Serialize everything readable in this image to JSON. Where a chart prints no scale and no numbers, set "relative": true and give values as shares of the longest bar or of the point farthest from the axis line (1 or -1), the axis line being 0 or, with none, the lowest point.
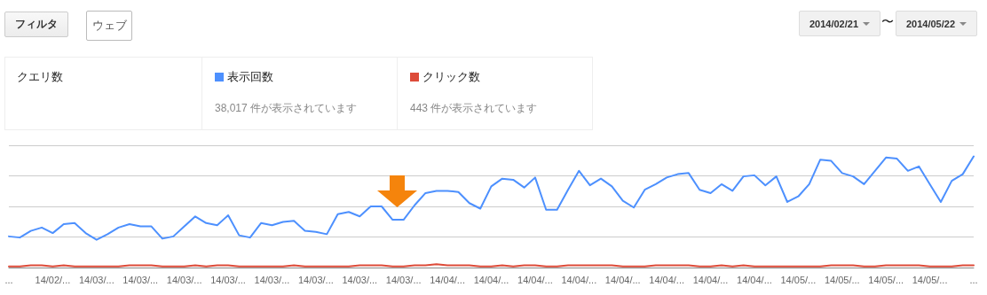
{
  "chart_data": {
    "type": "line",
    "relative": true,
    "grid": "y",
    "legend": "top left",
    "marker": "none",
    "line_style": "solid",
    "annotations": [
      "フィルタ",
      "ウェブ",
      "2014/02/21",
      "〜",
      "2014/05/22",
      "クエリ数",
      "38,017 件が表示されています",
      "443 件が表示されています"
    ],
    "categories": [
      "...",
      null,
      null,
      null,
      "14/02/...",
      null,
      null,
      null,
      "14/03/...",
      null,
      null,
      null,
      "14/03/...",
      null,
      null,
      null,
      "14/03/...",
      null,
      null,
      null,
      "14/03/...",
      null,
      null,
      null,
      "14/03/...",
      null,
      null,
      null,
      "14/03/...",
      null,
      null,
      null,
      "14/03/...",
      null,
      null,
      null,
      "14/03/...",
      null,
      null,
      null,
      "14/04/...",
      null,
      null,
      null,
      "14/04/...",
      null,
      null,
      null,
      "14/04/...",
      null,
      null,
      null,
      "14/04/...",
      null,
      null,
      null,
      "14/04/...",
      null,
      null,
      null,
      "14/04/...",
      null,
      null,
      null,
      "14/04/...",
      null,
      null,
      null,
      "14/04/...",
      null,
      null,
      null,
      "14/05/...",
      null,
      null,
      null,
      "14/05/...",
      null,
      null,
      null,
      "14/05/...",
      null,
      null,
      null,
      "14/05/...",
      null,
      null,
      null,
      "..."
    ],
    "series": [
      {
        "name": "表示回数",
        "color": "#4d90fe",
        "values": [
          0.28,
          0.27,
          0.33,
          0.36,
          0.31,
          0.39,
          0.4,
          0.31,
          0.25,
          0.3,
          0.36,
          0.39,
          0.37,
          0.37,
          0.26,
          0.28,
          0.37,
          0.46,
          0.4,
          0.38,
          0.47,
          0.29,
          0.27,
          0.4,
          0.38,
          0.41,
          0.42,
          0.33,
          0.32,
          0.3,
          0.48,
          0.5,
          0.46,
          0.55,
          0.55,
          0.43,
          0.43,
          0.56,
          0.67,
          0.69,
          0.69,
          0.68,
          0.58,
          0.53,
          0.73,
          0.8,
          0.79,
          0.72,
          0.81,
          0.52,
          0.52,
          0.7,
          0.87,
          0.74,
          0.8,
          0.73,
          0.6,
          0.54,
          0.7,
          0.75,
          0.81,
          0.84,
          0.85,
          0.7,
          0.67,
          0.75,
          0.69,
          0.82,
          0.83,
          0.74,
          0.82,
          0.59,
          0.64,
          0.75,
          0.97,
          0.96,
          0.85,
          0.82,
          0.75,
          0.87,
          0.99,
          0.98,
          0.87,
          0.91,
          0.75,
          0.59,
          0.78,
          0.84,
          1
        ]
      },
      {
        "name": "クリック数",
        "color": "#dd4b39",
        "values": [
          0.01,
          0.01,
          0.02,
          0.02,
          0.01,
          0.02,
          0.01,
          0.01,
          0.01,
          0.01,
          0.01,
          0.02,
          0.02,
          0.02,
          0.01,
          0.01,
          0.01,
          0.02,
          0.01,
          0.02,
          0.02,
          0.01,
          0.01,
          0.01,
          0.01,
          0.01,
          0.02,
          0.01,
          0.01,
          0.01,
          0.01,
          0.01,
          0.02,
          0.02,
          0.02,
          0.01,
          0.01,
          0.02,
          0.02,
          0.03,
          0.02,
          0.02,
          0.02,
          0.01,
          0.01,
          0.02,
          0.01,
          0.02,
          0.02,
          0.01,
          0.01,
          0.02,
          0.02,
          0.02,
          0.02,
          0.02,
          0.01,
          0.01,
          0.01,
          0.02,
          0.02,
          0.02,
          0.02,
          0.01,
          0.01,
          0.02,
          0.01,
          0.02,
          0.01,
          0.01,
          0.01,
          0.01,
          0.01,
          0.01,
          0.01,
          0.02,
          0.02,
          0.02,
          0.01,
          0.01,
          0.02,
          0.02,
          0.02,
          0.02,
          0.01,
          0.01,
          0.01,
          0.02,
          0.02
        ]
      }
    ]
  }
}
